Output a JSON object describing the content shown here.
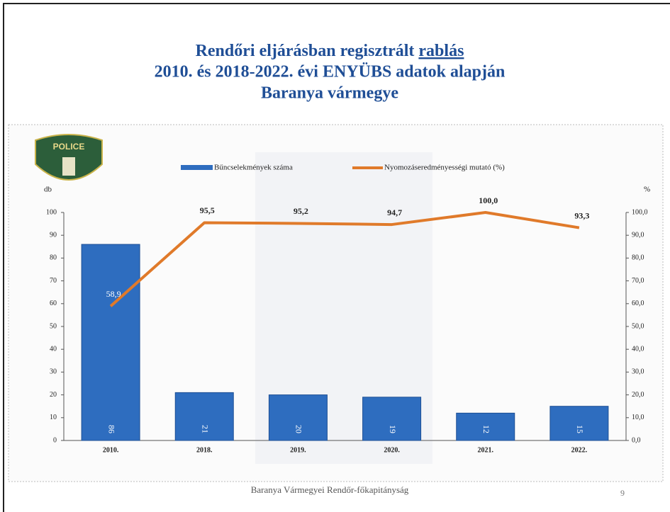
{
  "chart_data": {
    "type": "bar_line",
    "title_line1": "Rendőri eljárásban regisztrált",
    "title_emphasis": "rablás",
    "title_line2": "2010. és 2018-2022. évi ENYÜBS adatok alapján",
    "title_line3": "Baranya vármegye",
    "logo_text": "POLICE",
    "y_label": "db",
    "y2_label": "%",
    "categories": [
      "2010.",
      "2018.",
      "2019.",
      "2020.",
      "2021.",
      "2022."
    ],
    "series": [
      {
        "name": "Bűncselekmények száma",
        "kind": "bar",
        "color": "#2e6dbf",
        "values": [
          86,
          21,
          20,
          19,
          12,
          15
        ]
      },
      {
        "name": "Nyomozáseredményességi mutató (%)",
        "kind": "line",
        "axis": "y2",
        "color": "#e07a2a",
        "values": [
          58.9,
          95.5,
          95.2,
          94.7,
          100.0,
          93.3
        ],
        "value_labels": [
          "58,9",
          "95,5",
          "95,2",
          "94,7",
          "100,0",
          "93,3"
        ]
      }
    ],
    "ylim": [
      0,
      100
    ],
    "yticks": [
      0,
      10,
      20,
      30,
      40,
      50,
      60,
      70,
      80,
      90,
      100
    ],
    "y2lim": [
      0,
      100
    ],
    "y2ticks": [
      {
        "value": 0,
        "label": "0,0"
      },
      {
        "value": 10,
        "label": "10,0"
      },
      {
        "value": 20,
        "label": "20,0"
      },
      {
        "value": 30,
        "label": "30,0"
      },
      {
        "value": 40,
        "label": "40,0"
      },
      {
        "value": 50,
        "label": "50,0"
      },
      {
        "value": 60,
        "label": "60,0"
      },
      {
        "value": 70,
        "label": "70,0"
      },
      {
        "value": 80,
        "label": "80,0"
      },
      {
        "value": 90,
        "label": "90,0"
      },
      {
        "value": 100,
        "label": "100,0"
      }
    ],
    "footer": "Baranya Vármegyei Rendőr-főkapitányság",
    "page_number": "9"
  }
}
